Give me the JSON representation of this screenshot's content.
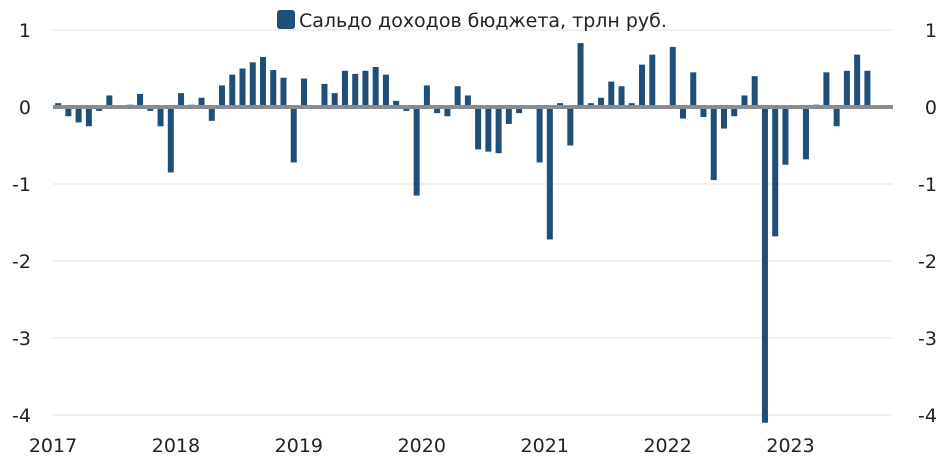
{
  "chart_data": {
    "type": "bar",
    "series": [
      {
        "name": "Сальдо доходов бюджета, трлн руб.",
        "values": [
          0.05,
          -0.12,
          -0.2,
          -0.25,
          -0.05,
          0.15,
          0.0,
          0.03,
          0.17,
          -0.05,
          -0.25,
          -0.85,
          0.18,
          0.03,
          0.12,
          -0.18,
          0.28,
          0.42,
          0.5,
          0.58,
          0.65,
          0.48,
          0.38,
          -0.72,
          0.37,
          0.02,
          0.3,
          0.18,
          0.47,
          0.43,
          0.47,
          0.52,
          0.42,
          0.08,
          -0.05,
          -1.15,
          0.28,
          -0.08,
          -0.12,
          0.27,
          0.15,
          -0.55,
          -0.58,
          -0.6,
          -0.22,
          -0.08,
          0.0,
          -0.72,
          -1.72,
          0.05,
          -0.5,
          0.83,
          0.05,
          0.12,
          0.33,
          0.27,
          0.05,
          0.55,
          0.68,
          0.0,
          0.78,
          -0.15,
          0.45,
          -0.13,
          -0.95,
          -0.28,
          -0.12,
          0.15,
          0.4,
          -4.1,
          -1.68,
          -0.75,
          0.02,
          -0.68,
          0.03,
          0.45,
          -0.25,
          0.47,
          0.68,
          0.47
        ],
        "color": "#1f4e79"
      }
    ],
    "x_start_year": 2017,
    "months_per_year": 12,
    "x_tick_labels": [
      "2017",
      "2018",
      "2019",
      "2020",
      "2021",
      "2022",
      "2023"
    ],
    "y_ticks": [
      1,
      0,
      -1,
      -2,
      -3,
      -4
    ],
    "y_tick_labels": [
      "1",
      "0",
      "-1",
      "-2",
      "-3",
      "-4"
    ],
    "ylim": [
      -4,
      1
    ],
    "legend": {
      "label": "Сальдо доходов бюджета, трлн руб.",
      "position": "top-center"
    },
    "grid": true,
    "title": "",
    "xlabel": "",
    "ylabel": ""
  }
}
